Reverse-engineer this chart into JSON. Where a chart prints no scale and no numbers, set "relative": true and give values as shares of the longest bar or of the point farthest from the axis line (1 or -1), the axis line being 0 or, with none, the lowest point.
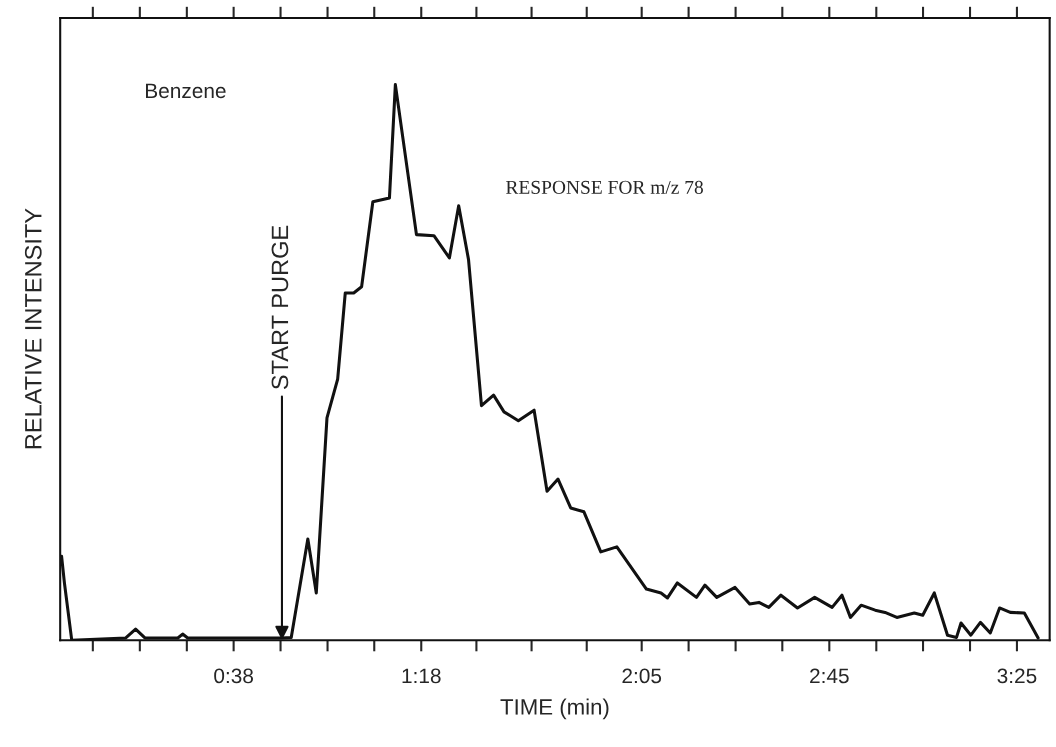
{
  "chart_data": {
    "type": "line",
    "relative": true,
    "xlabel": "TIME (min)",
    "ylabel": "RELATIVE INTENSITY",
    "x": [
      0.022,
      0.032,
      0.058,
      0.25,
      0.285,
      0.318,
      0.435,
      0.452,
      0.47,
      0.805,
      0.838,
      0.897,
      0.927,
      0.965,
      1.003,
      1.03,
      1.06,
      1.088,
      1.128,
      1.187,
      1.208,
      1.283,
      1.345,
      1.4,
      1.433,
      1.468,
      1.514,
      1.557,
      1.594,
      1.645,
      1.701,
      1.747,
      1.786,
      1.831,
      1.878,
      1.938,
      1.995,
      2.1,
      2.152,
      2.175,
      2.21,
      2.278,
      2.308,
      2.35,
      2.415,
      2.467,
      2.5,
      2.535,
      2.578,
      2.637,
      2.698,
      2.76,
      2.795,
      2.825,
      2.863,
      2.913,
      2.948,
      2.99,
      3.052,
      3.082,
      3.123,
      3.17,
      3.202,
      3.218,
      3.253,
      3.287,
      3.322,
      3.355,
      3.393,
      3.443,
      3.492
    ],
    "series": [
      {
        "color": "#111111",
        "values": [
          0.151,
          0.103,
          0,
          0.004,
          0.02,
          0.004,
          0.004,
          0.011,
          0.004,
          0.004,
          0.005,
          0.182,
          0.085,
          0.4,
          0.47,
          0.625,
          0.625,
          0.636,
          0.789,
          0.796,
          1.0,
          0.73,
          0.728,
          0.688,
          0.782,
          0.685,
          0.422,
          0.441,
          0.411,
          0.395,
          0.414,
          0.268,
          0.29,
          0.238,
          0.231,
          0.159,
          0.168,
          0.092,
          0.085,
          0.076,
          0.103,
          0.077,
          0.099,
          0.077,
          0.095,
          0.065,
          0.068,
          0.059,
          0.081,
          0.058,
          0.077,
          0.059,
          0.081,
          0.041,
          0.063,
          0.054,
          0.05,
          0.041,
          0.049,
          0.045,
          0.085,
          0.009,
          0.005,
          0.031,
          0.009,
          0.032,
          0.013,
          0.058,
          0.05,
          0.049,
          0.004
        ]
      }
    ],
    "xlim": [
      0.017,
      3.533
    ],
    "xticks": [
      {
        "value": 0.133,
        "label": null
      },
      {
        "value": 0.3,
        "label": null
      },
      {
        "value": 0.467,
        "label": null
      },
      {
        "value": 0.6333,
        "label": "0:38"
      },
      {
        "value": 0.8,
        "label": null
      },
      {
        "value": 0.967,
        "label": null
      },
      {
        "value": 1.133,
        "label": null
      },
      {
        "value": 1.3,
        "label": "1:18"
      },
      {
        "value": 1.496,
        "label": null
      },
      {
        "value": 1.692,
        "label": null
      },
      {
        "value": 1.888,
        "label": null
      },
      {
        "value": 2.0833,
        "label": "2:05"
      },
      {
        "value": 2.25,
        "label": null
      },
      {
        "value": 2.417,
        "label": null
      },
      {
        "value": 2.583,
        "label": null
      },
      {
        "value": 2.75,
        "label": "2:45"
      },
      {
        "value": 2.917,
        "label": null
      },
      {
        "value": 3.083,
        "label": null
      },
      {
        "value": 3.25,
        "label": null
      },
      {
        "value": 3.4167,
        "label": "3:25"
      }
    ],
    "tick_labels": "x",
    "grid": false,
    "legend": false,
    "marker": "none",
    "line_style": "solid",
    "annotations": [
      "Benzene",
      "RESPONSE FOR m/z 78",
      {
        "text": "START PURGE",
        "x": 0.805,
        "y": 0
      }
    ]
  }
}
